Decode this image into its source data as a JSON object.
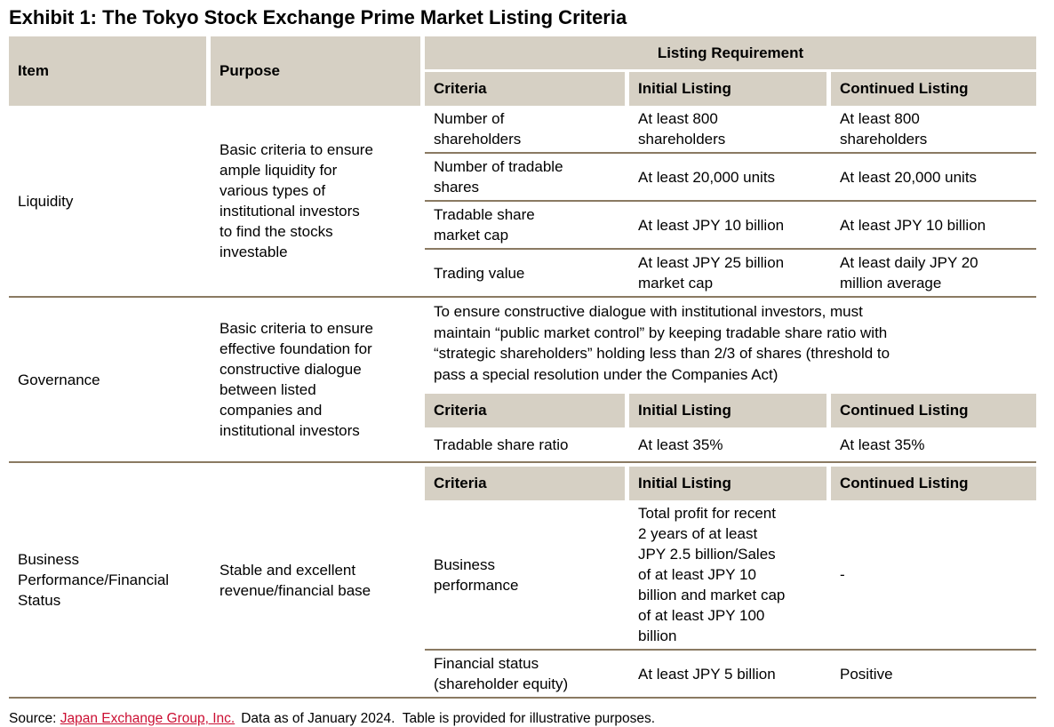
{
  "title": "Exhibit 1: The Tokyo Stock Exchange Prime Market Listing Criteria",
  "colors": {
    "header_bg": "#d6d0c4",
    "divider": "#8a7a62",
    "link": "#cb0e32",
    "text": "#000000"
  },
  "table": {
    "columns": {
      "item": "Item",
      "purpose": "Purpose",
      "group": "Listing Requirement",
      "criteria": "Criteria",
      "initial": "Initial Listing",
      "continued": "Continued Listing"
    },
    "sections": [
      {
        "item": "Liquidity",
        "purpose": "Basic criteria to ensure\nample liquidity for\nvarious types of\ninstitutional investors\nto find the stocks\ninvestable",
        "rows": [
          {
            "criteria": "Number of\nshareholders",
            "initial": "At least 800\nshareholders",
            "continued": "At least 800\nshareholders"
          },
          {
            "criteria": "Number of tradable\nshares",
            "initial": "At least 20,000 units",
            "continued": "At least 20,000 units"
          },
          {
            "criteria": "Tradable share\nmarket cap",
            "initial": "At least JPY 10 billion",
            "continued": "At least JPY 10 billion"
          },
          {
            "criteria": "Trading value",
            "initial": "At least JPY 25 billion\nmarket cap",
            "continued": "At least daily JPY 20\nmillion average"
          }
        ]
      },
      {
        "item": "Governance",
        "purpose": "Basic criteria to ensure\neffective foundation for\nconstructive dialogue\nbetween listed\ncompanies and\ninstitutional investors",
        "note": "To ensure constructive dialogue with institutional investors, must\nmaintain “public market control” by keeping tradable share ratio with\n“strategic shareholders” holding less than 2/3 of shares (threshold to\npass a special resolution under the Companies Act)",
        "rows": [
          {
            "criteria": "Tradable share ratio",
            "initial": "At least 35%",
            "continued": "At least 35%"
          }
        ]
      },
      {
        "item": "Business\nPerformance/Financial\nStatus",
        "purpose": "Stable and excellent\nrevenue/financial base",
        "rows": [
          {
            "criteria": "Business\nperformance",
            "initial": "Total profit for recent\n2 years of at least\nJPY 2.5 billion/Sales\nof at least JPY 10\nbillion and market cap\nof at least JPY 100\nbillion",
            "continued": "-"
          },
          {
            "criteria": "Financial status\n(shareholder equity)",
            "initial": "At least JPY 5 billion",
            "continued": "Positive"
          }
        ]
      }
    ]
  },
  "footer": {
    "prefix": "Source: ",
    "link": "Japan Exchange Group, Inc.",
    "rest": "Data as of January 2024.  Table is provided for illustrative purposes."
  }
}
